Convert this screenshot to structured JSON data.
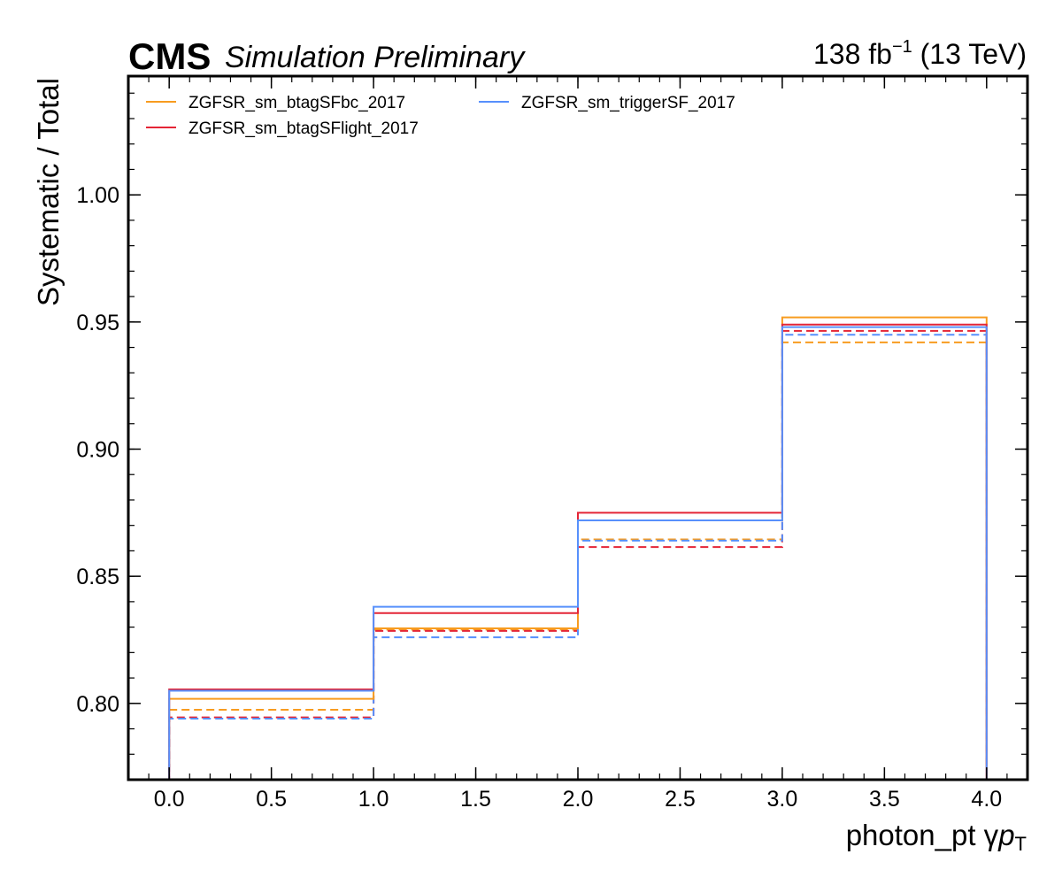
{
  "chart_data": {
    "type": "line",
    "drawstyle": "step",
    "header": {
      "experiment": "CMS",
      "status": "Simulation Preliminary",
      "lumi_value": "138 fb",
      "lumi_exp": "−1",
      "energy": "(13 TeV)"
    },
    "xlabel": "photon_pt   γpT",
    "xlabel_main": "photon_pt   γ",
    "xlabel_p": "p",
    "xlabel_sub": "T",
    "ylabel": "Systematic / Total",
    "xlim": [
      -0.2,
      4.2
    ],
    "ylim": [
      0.77,
      1.0467
    ],
    "xticks": [
      "0.0",
      "0.5",
      "1.0",
      "1.5",
      "2.0",
      "2.5",
      "3.0",
      "3.5",
      "4.0"
    ],
    "yticks": [
      "0.80",
      "0.85",
      "0.90",
      "0.95",
      "1.00"
    ],
    "bin_edges": [
      0,
      1,
      2,
      3,
      4
    ],
    "legend_position": "upper-left",
    "series": [
      {
        "name": "ZGFSR_sm_btagSFbc_2017",
        "color": "#f89c20",
        "up": [
          0.8018,
          0.8295,
          0.872,
          0.9518
        ],
        "down": [
          0.7975,
          0.829,
          0.8645,
          0.942
        ]
      },
      {
        "name": "ZGFSR_sm_btagSFlight_2017",
        "color": "#e42536",
        "up": [
          0.8055,
          0.8355,
          0.875,
          0.949
        ],
        "down": [
          0.7945,
          0.8285,
          0.8615,
          0.9465
        ]
      },
      {
        "name": "ZGFSR_sm_triggerSF_2017",
        "color": "#5790fc",
        "up": [
          0.805,
          0.838,
          0.872,
          0.948
        ],
        "down": [
          0.794,
          0.826,
          0.864,
          0.945
        ]
      }
    ]
  }
}
